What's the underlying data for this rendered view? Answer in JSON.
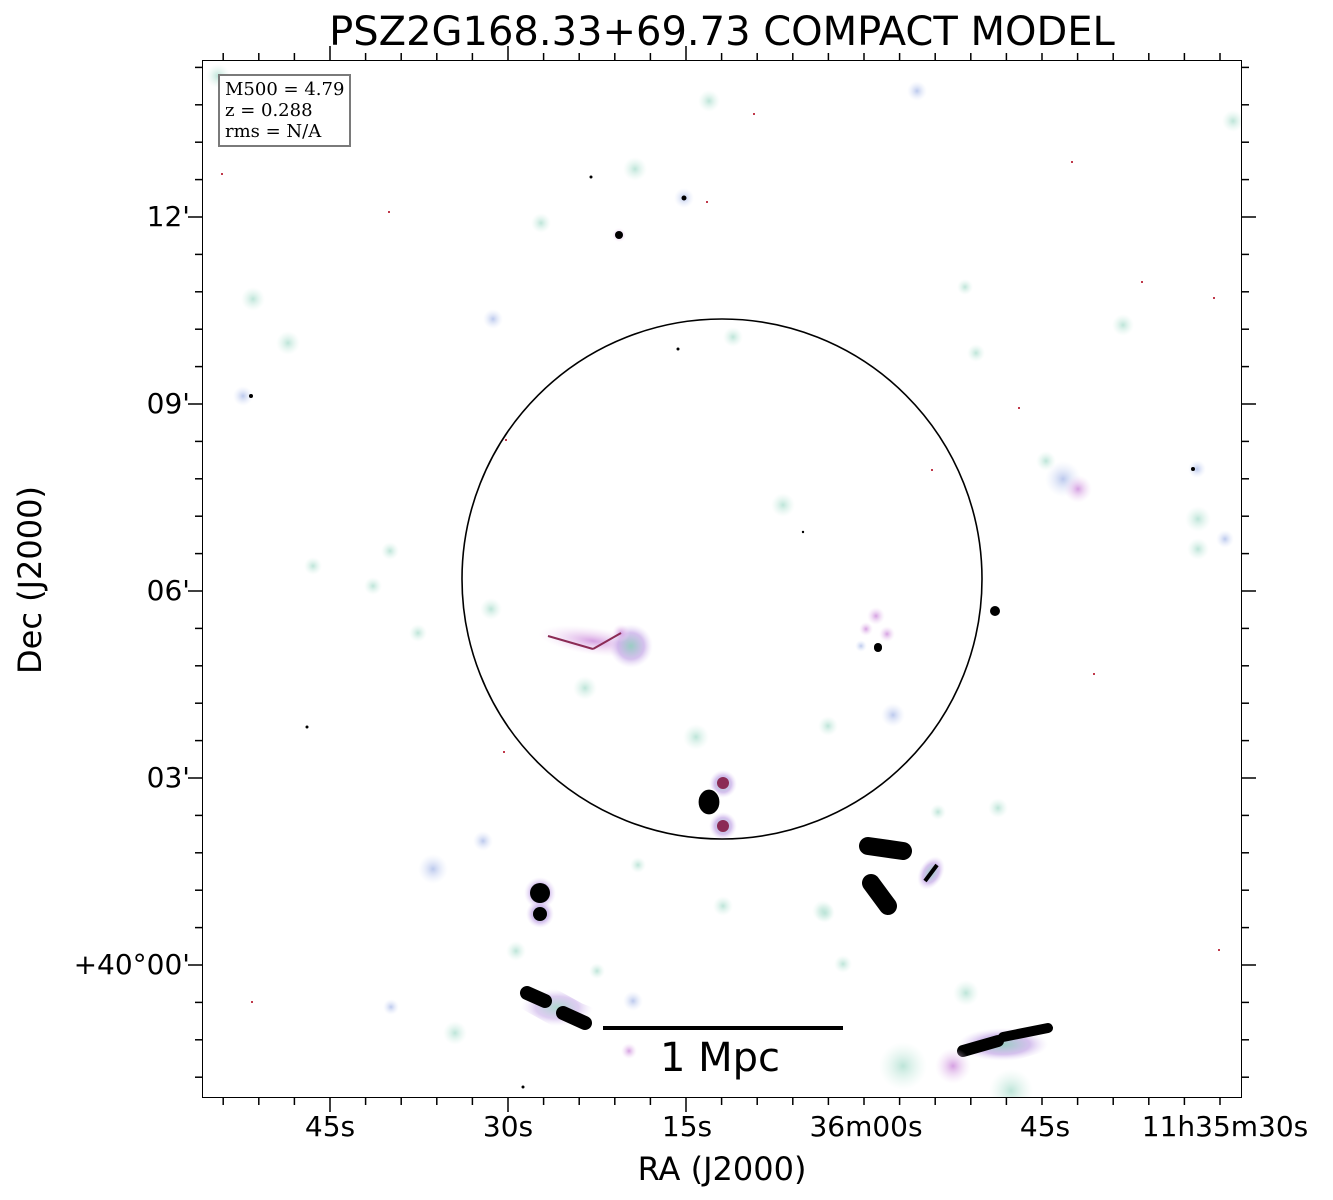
{
  "figure": {
    "title": "PSZ2G168.33+69.73 COMPACT MODEL",
    "xlabel": "RA (J2000)",
    "ylabel": "Dec (J2000)",
    "x_ticks": [
      "45s",
      "30s",
      "15s",
      "36m00s",
      "45s",
      "11h35m30s"
    ],
    "y_ticks": [
      "12'",
      "09'",
      "06'",
      "03'",
      "+40°00'"
    ],
    "info": {
      "m500": "M500 = 4.79",
      "z": "z = 0.288",
      "rms": "rms = N/A"
    },
    "scalebar_label": "1 Mpc",
    "colors": {
      "frame": "#000000",
      "halo_teal": "#a8dccf",
      "halo_purple": "#c9a0e0",
      "core": "#000000"
    }
  }
}
